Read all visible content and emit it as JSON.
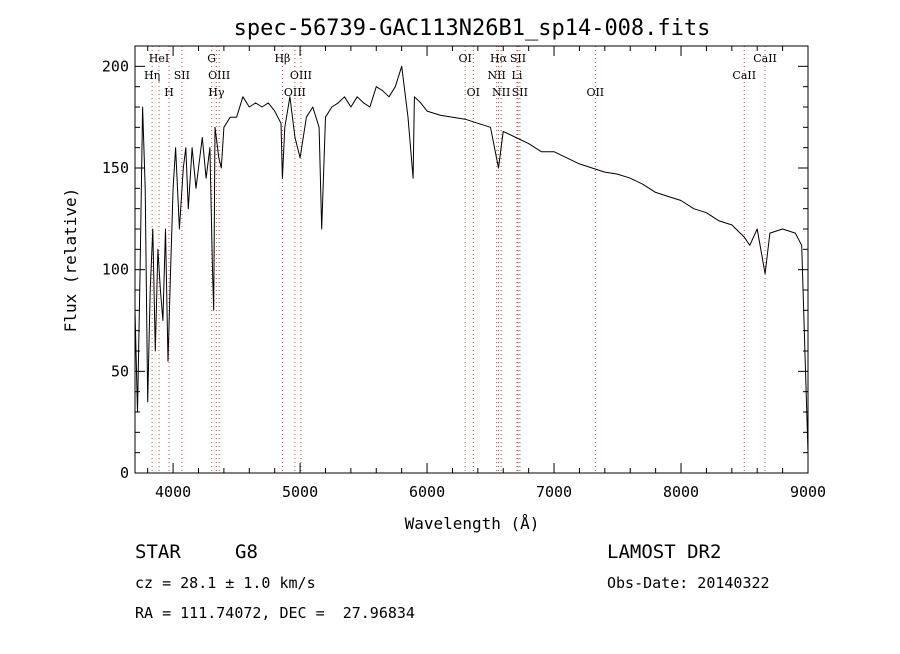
{
  "chart_data": {
    "type": "line",
    "title": "spec-56739-GAC113N26B1_sp14-008.fits",
    "xlabel": "Wavelength (Å)",
    "ylabel": "Flux (relative)",
    "xlim": [
      3700,
      9000
    ],
    "ylim": [
      0,
      210
    ],
    "x_ticks": [
      4000,
      5000,
      6000,
      7000,
      8000,
      9000
    ],
    "y_ticks": [
      0,
      50,
      100,
      150,
      200
    ],
    "grid": false,
    "series": [
      {
        "x": [
          3700,
          3720,
          3740,
          3760,
          3780,
          3800,
          3820,
          3840,
          3860,
          3880,
          3900,
          3920,
          3940,
          3960,
          3980,
          4000,
          4020,
          4050,
          4080,
          4100,
          4120,
          4150,
          4180,
          4200,
          4230,
          4260,
          4290,
          4310,
          4320,
          4330,
          4340,
          4360,
          4380,
          4400,
          4450,
          4500,
          4550,
          4600,
          4650,
          4700,
          4750,
          4800,
          4850,
          4861,
          4880,
          4920,
          4960,
          5000,
          5050,
          5100,
          5150,
          5170,
          5200,
          5250,
          5300,
          5350,
          5400,
          5450,
          5500,
          5550,
          5600,
          5650,
          5700,
          5750,
          5800,
          5850,
          5890,
          5900,
          5950,
          6000,
          6100,
          6200,
          6300,
          6400,
          6500,
          6563,
          6600,
          6700,
          6800,
          6900,
          7000,
          7100,
          7200,
          7300,
          7400,
          7500,
          7600,
          7700,
          7800,
          7900,
          8000,
          8100,
          8200,
          8300,
          8400,
          8498,
          8542,
          8600,
          8662,
          8700,
          8800,
          8900,
          8950,
          9000
        ],
        "y": [
          80,
          30,
          100,
          180,
          140,
          35,
          90,
          120,
          60,
          110,
          90,
          75,
          120,
          55,
          100,
          140,
          160,
          120,
          150,
          160,
          130,
          160,
          140,
          150,
          165,
          145,
          160,
          100,
          80,
          170,
          165,
          155,
          150,
          170,
          175,
          175,
          185,
          180,
          182,
          180,
          182,
          178,
          172,
          145,
          170,
          185,
          165,
          155,
          175,
          180,
          170,
          120,
          175,
          180,
          182,
          185,
          180,
          185,
          182,
          180,
          190,
          188,
          185,
          190,
          200,
          175,
          145,
          185,
          182,
          178,
          176,
          175,
          174,
          172,
          170,
          150,
          168,
          165,
          162,
          158,
          158,
          155,
          152,
          150,
          148,
          147,
          145,
          142,
          138,
          136,
          134,
          130,
          128,
          124,
          122,
          116,
          112,
          120,
          98,
          118,
          120,
          118,
          112,
          10
        ]
      }
    ],
    "lines": [
      {
        "label": "HeI",
        "x": 3889,
        "row": 0
      },
      {
        "label": "Hη",
        "x": 3835,
        "row": 1
      },
      {
        "label": "SII",
        "x": 4069,
        "row": 1
      },
      {
        "label": "H",
        "x": 3968,
        "row": 2
      },
      {
        "label": "G",
        "x": 4304,
        "row": 0
      },
      {
        "label": "OIII",
        "x": 4363,
        "row": 1
      },
      {
        "label": "Hγ",
        "x": 4341,
        "row": 2
      },
      {
        "label": "Hβ",
        "x": 4861,
        "row": 0
      },
      {
        "label": "OIII",
        "x": 5007,
        "row": 1
      },
      {
        "label": "OIII",
        "x": 4959,
        "row": 2
      },
      {
        "label": "OI",
        "x": 6300,
        "row": 0
      },
      {
        "label": "OI",
        "x": 6364,
        "row": 2
      },
      {
        "label": "Hα",
        "x": 6563,
        "row": 0
      },
      {
        "label": "SII",
        "x": 6716,
        "row": 0
      },
      {
        "label": "NII",
        "x": 6548,
        "row": 1
      },
      {
        "label": "Li",
        "x": 6708,
        "row": 1
      },
      {
        "label": "NII",
        "x": 6584,
        "row": 2
      },
      {
        "label": "SII",
        "x": 6731,
        "row": 2
      },
      {
        "label": "OII",
        "x": 7325,
        "row": 2
      },
      {
        "label": "CaII",
        "x": 8662,
        "row": 0
      },
      {
        "label": "CaII",
        "x": 8498,
        "row": 1
      }
    ]
  },
  "info": {
    "class_label": "STAR",
    "subclass": "G8",
    "survey": "LAMOST DR2",
    "cz": "cz = 28.1 ± 1.0 km/s",
    "obs_date": "Obs-Date: 20140322",
    "coords": "RA = 111.74072, DEC =  27.96834"
  },
  "colors": {
    "spectrum": "#000000",
    "line_marker": "#d04040",
    "axis": "#000000"
  }
}
